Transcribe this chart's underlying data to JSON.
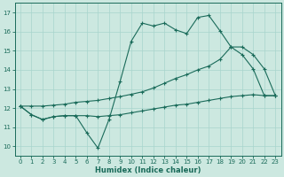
{
  "xlabel": "Humidex (Indice chaleur)",
  "xlim": [
    -0.5,
    23.5
  ],
  "ylim": [
    9.5,
    17.5
  ],
  "xticks": [
    0,
    1,
    2,
    3,
    4,
    5,
    6,
    7,
    8,
    9,
    10,
    11,
    12,
    13,
    14,
    15,
    16,
    17,
    18,
    19,
    20,
    21,
    22,
    23
  ],
  "yticks": [
    10,
    11,
    12,
    13,
    14,
    15,
    16,
    17
  ],
  "bg_color": "#cce8e0",
  "grid_color": "#a8d4cc",
  "line_color": "#1a6b5a",
  "line1_x": [
    0,
    1,
    2,
    3,
    4,
    5,
    6,
    7,
    8,
    9,
    10,
    11,
    12,
    13,
    14,
    15,
    16,
    17,
    18,
    19,
    20,
    21,
    22,
    23
  ],
  "line1_y": [
    12.1,
    11.65,
    11.4,
    11.55,
    11.6,
    11.6,
    10.7,
    9.9,
    11.4,
    13.4,
    15.5,
    16.45,
    16.3,
    16.45,
    16.1,
    15.9,
    16.75,
    16.85,
    16.05,
    15.2,
    14.8,
    14.05,
    12.65,
    12.65
  ],
  "line2_x": [
    0,
    1,
    2,
    3,
    4,
    5,
    6,
    7,
    8,
    9,
    10,
    11,
    12,
    13,
    14,
    15,
    16,
    17,
    18,
    19,
    20,
    21,
    22,
    23
  ],
  "line2_y": [
    12.1,
    12.1,
    12.1,
    12.15,
    12.2,
    12.3,
    12.35,
    12.4,
    12.5,
    12.6,
    12.72,
    12.85,
    13.05,
    13.3,
    13.55,
    13.75,
    14.0,
    14.2,
    14.55,
    15.2,
    15.2,
    14.8,
    14.05,
    12.65
  ],
  "line3_x": [
    0,
    1,
    2,
    3,
    4,
    5,
    6,
    7,
    8,
    9,
    10,
    11,
    12,
    13,
    14,
    15,
    16,
    17,
    18,
    19,
    20,
    21,
    22,
    23
  ],
  "line3_y": [
    12.1,
    11.65,
    11.4,
    11.55,
    11.6,
    11.6,
    11.6,
    11.55,
    11.6,
    11.65,
    11.75,
    11.85,
    11.95,
    12.05,
    12.15,
    12.2,
    12.3,
    12.4,
    12.5,
    12.6,
    12.65,
    12.7,
    12.65,
    12.65
  ]
}
